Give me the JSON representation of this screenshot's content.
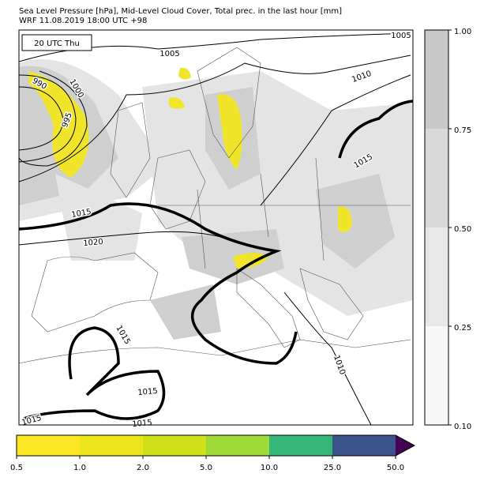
{
  "header": {
    "title": "Sea Level Pressure [hPa], Mid-Level Cloud Cover, Total prec. in the last hour [mm]",
    "subtitle": "WRF 11.08.2019 18:00 UTC +98"
  },
  "map": {
    "time_label": "20 UTC Thu",
    "contour_labels": [
      "1005",
      "1005",
      "990",
      "1000",
      "995",
      "1010",
      "1015",
      "1015",
      "1020",
      "1015",
      "1010",
      "1015",
      "1015",
      "1015"
    ]
  },
  "cloud_colorbar": {
    "colors": [
      "#f7f7f7",
      "#e8e8e8",
      "#d9d9d9",
      "#c8c8c8"
    ],
    "ticks": [
      {
        "value": 0.1,
        "label": "0.10"
      },
      {
        "value": 0.25,
        "label": "0.25"
      },
      {
        "value": 0.5,
        "label": "0.50"
      },
      {
        "value": 0.75,
        "label": "0.75"
      },
      {
        "value": 1,
        "label": "1.00"
      }
    ]
  },
  "precip_colorbar": {
    "colors": [
      "#fde725",
      "#ede51b",
      "#d0e11c",
      "#a0da39",
      "#35b779",
      "#3b528b"
    ],
    "extend_color": "#440154",
    "ticks": [
      {
        "value": 0.5,
        "label": "0.5"
      },
      {
        "value": 1,
        "label": "1.0"
      },
      {
        "value": 2,
        "label": "2.0"
      },
      {
        "value": 5,
        "label": "5.0"
      },
      {
        "value": 10,
        "label": "10.0"
      },
      {
        "value": 25,
        "label": "25.0"
      },
      {
        "value": 50,
        "label": "50.0"
      }
    ]
  }
}
